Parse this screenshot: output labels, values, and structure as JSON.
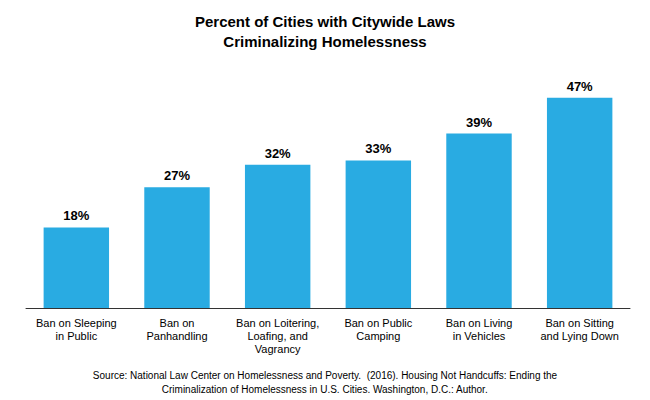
{
  "chart_data": {
    "type": "bar",
    "title": "Percent of Cities with Citywide Laws\nCriminalizing Homelessness",
    "categories": [
      "Ban on Sleeping\nin Public",
      "Ban on\nPanhandling",
      "Ban on Loitering,\nLoafing, and\nVagrancy",
      "Ban on Public\nCamping",
      "Ban on Living\nin Vehicles",
      "Ban on Sitting\nand Lying Down"
    ],
    "values": [
      18,
      27,
      32,
      33,
      39,
      47
    ],
    "value_labels": [
      "18%",
      "27%",
      "32%",
      "33%",
      "39%",
      "47%"
    ],
    "data_labels": true,
    "color": "#29ABE2",
    "ylim": [
      0,
      55
    ],
    "grid": false,
    "tick_labels": "x",
    "annotations": [
      "Source: National Law Center on Homelessness and Poverty.  (2016). Housing Not Handcuffs: Ending the",
      "Criminalization of Homelessness in U.S. Cities. Washington, D.C.: Author."
    ]
  }
}
